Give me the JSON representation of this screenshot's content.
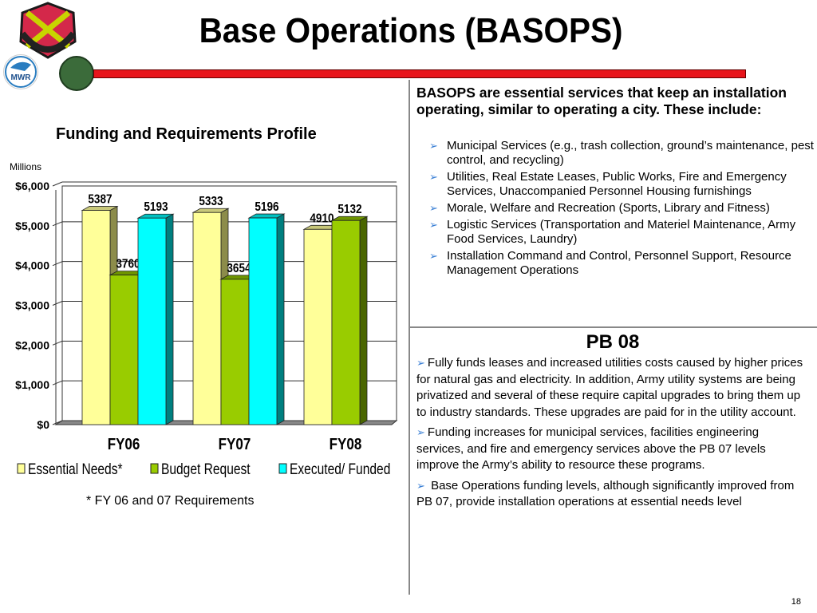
{
  "title": "Base Operations (BASOPS)",
  "logos": {
    "crest": "SUSTAIN SUPPORT DEFEND",
    "mwr": "MWR"
  },
  "colors": {
    "red_bar": "#e8141b",
    "essential": "#ffff99",
    "budget": "#99cc00",
    "executed": "#00ffff"
  },
  "chart_data": {
    "type": "bar",
    "title": "Funding and Requirements Profile",
    "ylabel": "Millions",
    "categories": [
      "FY06",
      "FY07",
      "FY08"
    ],
    "series": [
      {
        "name": "Essential Needs*",
        "values": [
          5387,
          5333,
          4910
        ]
      },
      {
        "name": "Budget Request",
        "values": [
          3760,
          3654,
          5132
        ]
      },
      {
        "name": "Executed/ Funded",
        "values": [
          5193,
          5196,
          null
        ]
      }
    ],
    "ylim": [
      0,
      6000
    ],
    "yticks": [
      "$0",
      "$1,000",
      "$2,000",
      "$3,000",
      "$4,000",
      "$5,000",
      "$6,000"
    ],
    "grid": true,
    "legend": "bottom",
    "footnote": "* FY 06 and 07 Requirements"
  },
  "intro": "BASOPS are essential services that keep an installation operating, similar to operating a city. These include:",
  "services": [
    "Municipal Services (e.g., trash collection, ground’s maintenance, pest control, and recycling)",
    "Utilities, Real Estate Leases, Public Works, Fire and Emergency Services, Unaccompanied Personnel Housing furnishings",
    "Morale, Welfare and Recreation (Sports, Library and Fitness)",
    "Logistic Services (Transportation and Materiel Maintenance, Army Food Services, Laundry)",
    "Installation Command and Control, Personnel Support, Resource Management Operations"
  ],
  "pb": {
    "title": "PB 08",
    "items": [
      "Fully funds leases and increased utilities costs caused by higher prices for natural gas and electricity.  In addition, Army utility systems are being privatized and several of these require capital upgrades to bring them up to industry standards.  These upgrades are paid for in the utility account.",
      "Funding increases for municipal services, facilities engineering services, and fire and emergency services above the PB 07 levels improve the Army’s ability to resource these programs.",
      " Base Operations funding levels, although significantly improved from PB 07, provide installation operations at essential needs level"
    ]
  },
  "page_number": "18"
}
